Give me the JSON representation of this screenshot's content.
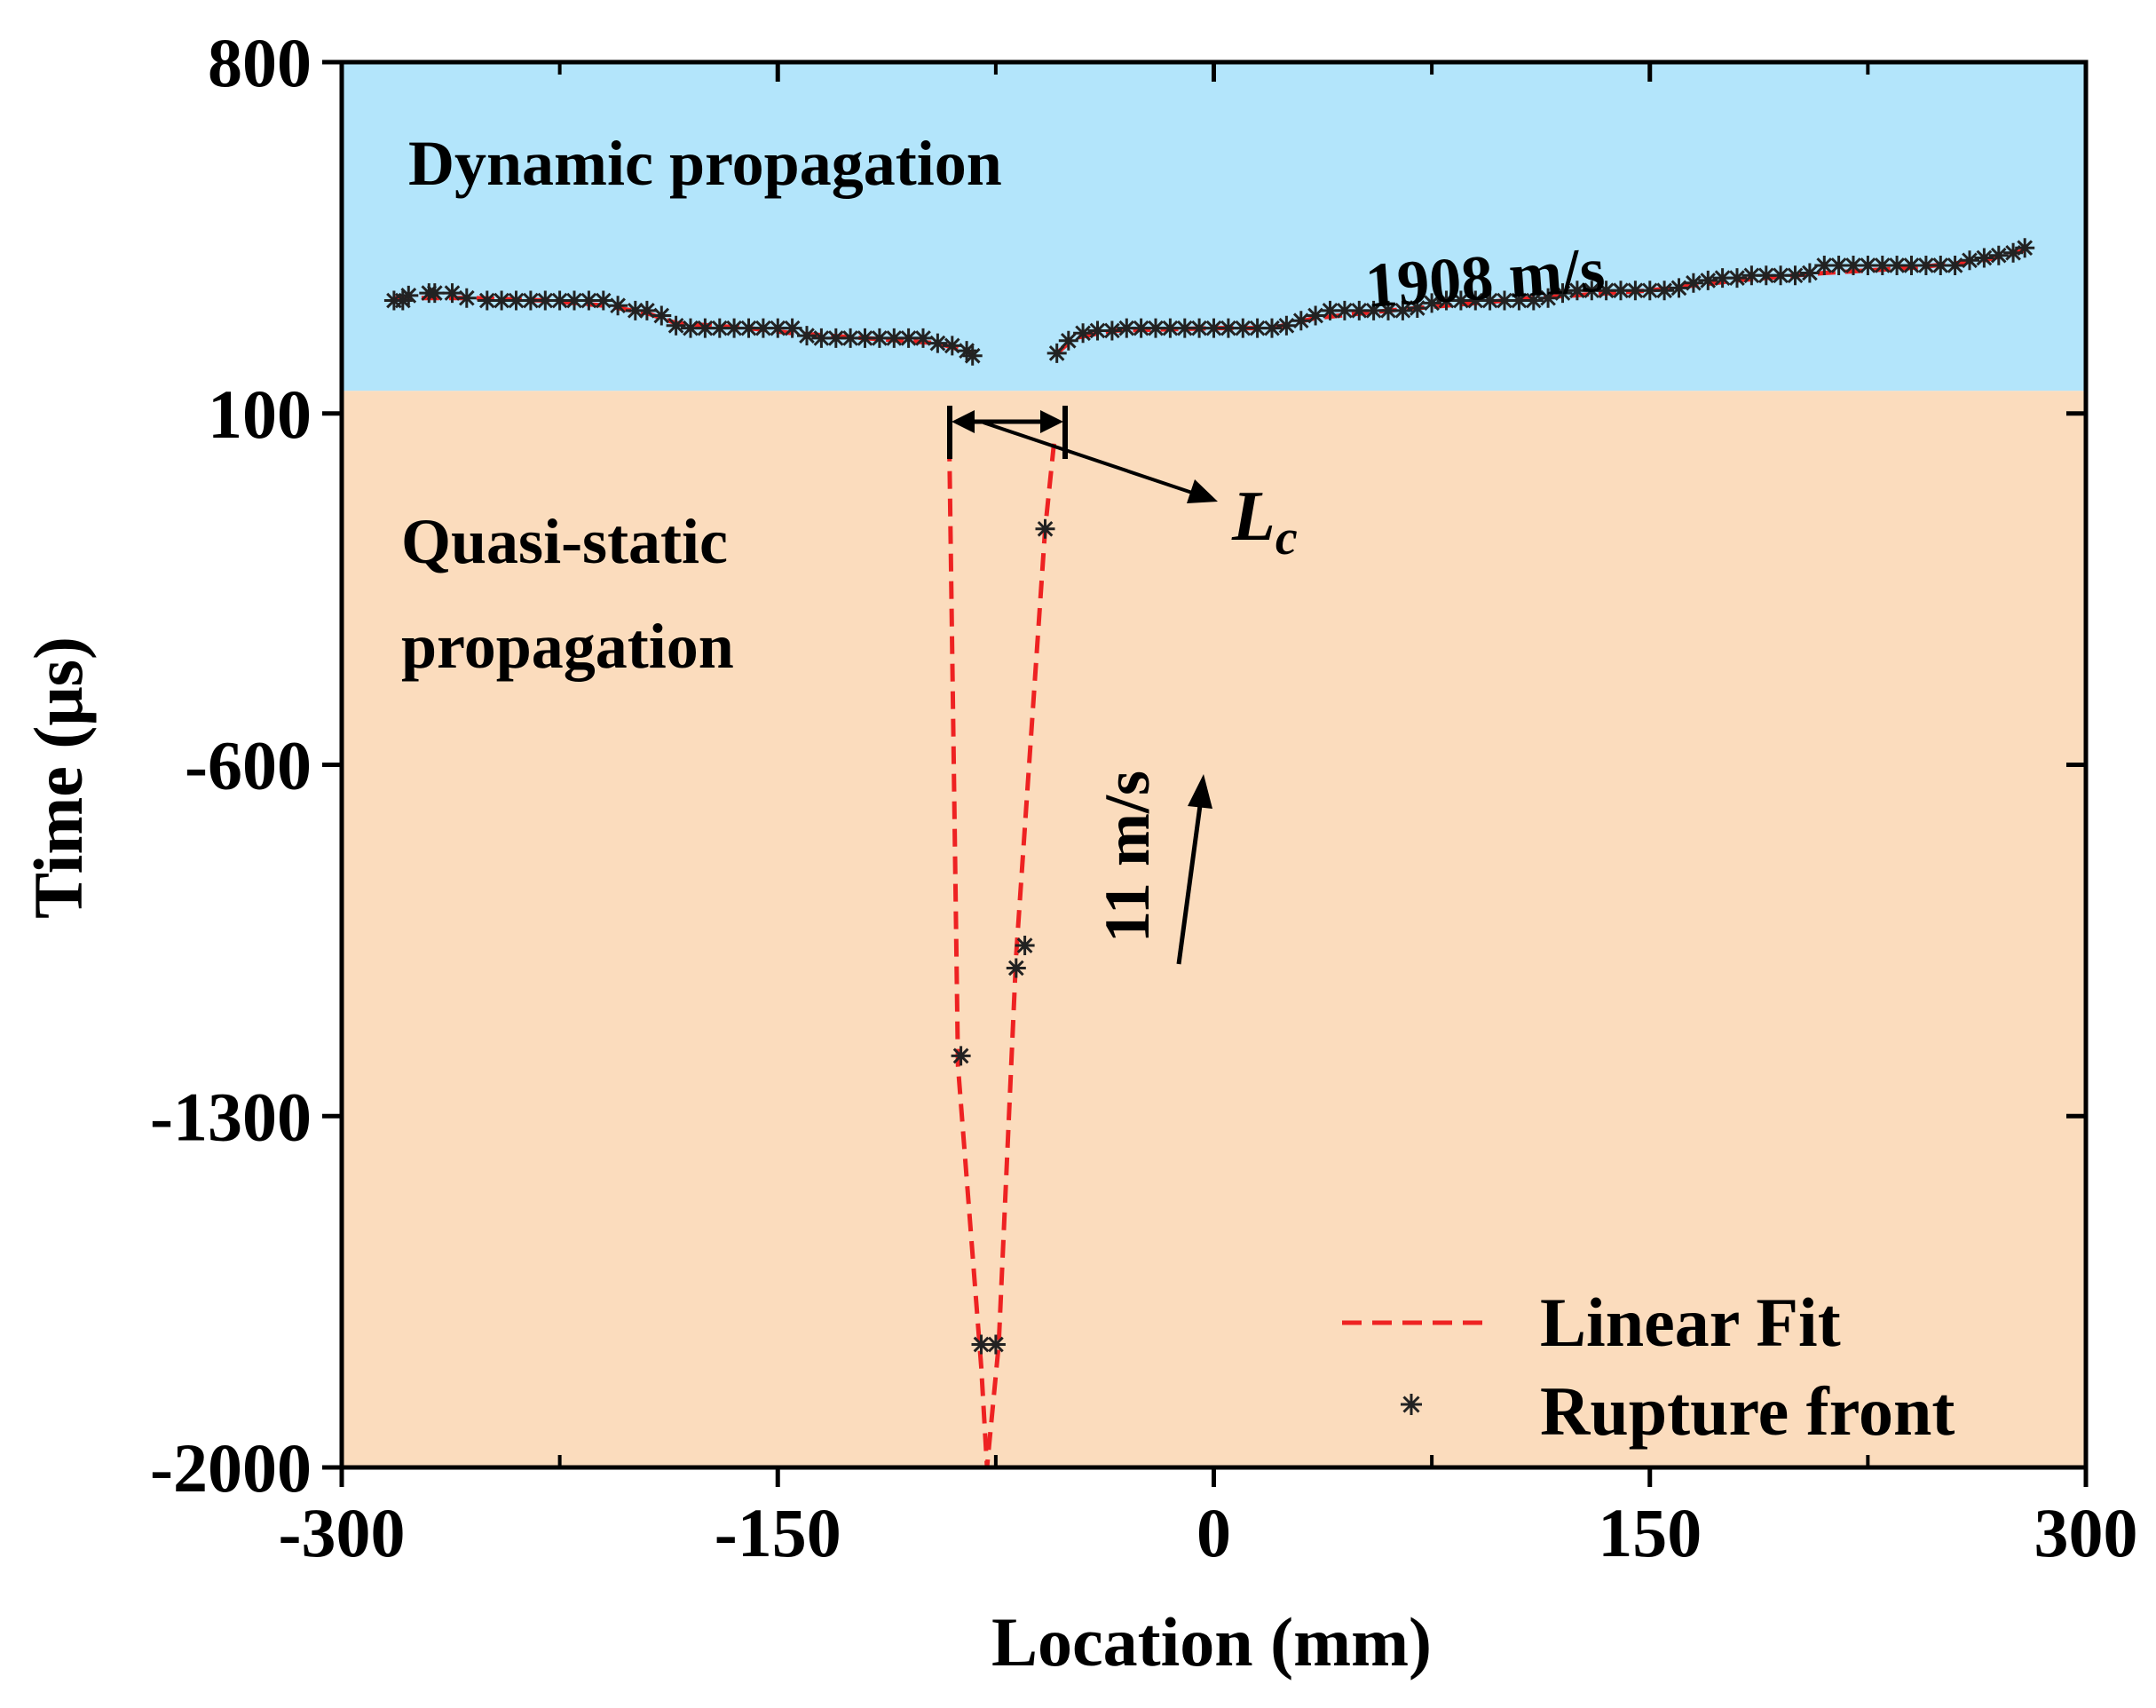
{
  "chart_data": {
    "type": "scatter",
    "xlabel": "Location (mm)",
    "ylabel": "Time (μs)",
    "xlim": [
      -300,
      300
    ],
    "ylim": [
      -2000,
      800
    ],
    "xticks": [
      -300,
      -150,
      0,
      150,
      300
    ],
    "yticks": [
      800,
      100,
      -600,
      -1300,
      -2000
    ],
    "xtick_labels": [
      "-300",
      "-150",
      "0",
      "150",
      "300"
    ],
    "ytick_labels": [
      "800",
      "100",
      "-600",
      "-1300",
      "-2000"
    ],
    "region_boundary_time": 145,
    "colors": {
      "dynamic_region": "#b3e5fb",
      "quasi_region": "#fbdcbd",
      "fit_line": "#ee2222",
      "marker": "#222222"
    },
    "regions": {
      "dynamic": {
        "label": "Dynamic propagation"
      },
      "quasi_static": {
        "label_line1": "Quasi-static",
        "label_line2": "propagation"
      }
    },
    "annotations": {
      "dynamic_speed": "1908 m/s",
      "quasi_speed": "11 m/s",
      "critical_length_symbol": "L",
      "critical_length_subscript": "c"
    },
    "legend": {
      "position": "bottom-right",
      "entries": [
        {
          "label": "Linear Fit",
          "style": "dashed-line"
        },
        {
          "label": "Rupture front",
          "style": "asterisk"
        }
      ]
    },
    "series": [
      {
        "name": "Rupture front",
        "kind": "scatter",
        "points": [
          [
            -282,
            325
          ],
          [
            -279,
            325
          ],
          [
            -277,
            335
          ],
          [
            -270,
            340
          ],
          [
            -268,
            340
          ],
          [
            -262,
            340
          ],
          [
            -257,
            330
          ],
          [
            -250,
            325
          ],
          [
            -245,
            325
          ],
          [
            -240,
            325
          ],
          [
            -235,
            325
          ],
          [
            -230,
            325
          ],
          [
            -225,
            325
          ],
          [
            -220,
            325
          ],
          [
            -215,
            325
          ],
          [
            -210,
            325
          ],
          [
            -205,
            315
          ],
          [
            -199,
            305
          ],
          [
            -195,
            305
          ],
          [
            -190,
            295
          ],
          [
            -185,
            275
          ],
          [
            -180,
            270
          ],
          [
            -175,
            270
          ],
          [
            -170,
            270
          ],
          [
            -165,
            270
          ],
          [
            -160,
            270
          ],
          [
            -155,
            270
          ],
          [
            -150,
            270
          ],
          [
            -145,
            270
          ],
          [
            -140,
            255
          ],
          [
            -135,
            250
          ],
          [
            -130,
            250
          ],
          [
            -125,
            250
          ],
          [
            -120,
            250
          ],
          [
            -115,
            250
          ],
          [
            -110,
            250
          ],
          [
            -105,
            250
          ],
          [
            -100,
            250
          ],
          [
            -95,
            240
          ],
          [
            -90,
            235
          ],
          [
            -85,
            225
          ],
          [
            -83,
            215
          ],
          [
            -54,
            220
          ],
          [
            -50,
            245
          ],
          [
            -45,
            260
          ],
          [
            -40,
            265
          ],
          [
            -35,
            265
          ],
          [
            -30,
            270
          ],
          [
            -25,
            270
          ],
          [
            -20,
            270
          ],
          [
            -15,
            270
          ],
          [
            -10,
            270
          ],
          [
            -5,
            270
          ],
          [
            0,
            270
          ],
          [
            5,
            270
          ],
          [
            10,
            270
          ],
          [
            15,
            270
          ],
          [
            20,
            270
          ],
          [
            25,
            275
          ],
          [
            30,
            285
          ],
          [
            35,
            295
          ],
          [
            40,
            305
          ],
          [
            45,
            305
          ],
          [
            50,
            305
          ],
          [
            55,
            305
          ],
          [
            60,
            305
          ],
          [
            65,
            305
          ],
          [
            70,
            310
          ],
          [
            75,
            320
          ],
          [
            80,
            325
          ],
          [
            85,
            325
          ],
          [
            90,
            325
          ],
          [
            95,
            325
          ],
          [
            100,
            325
          ],
          [
            105,
            325
          ],
          [
            110,
            325
          ],
          [
            115,
            330
          ],
          [
            120,
            340
          ],
          [
            125,
            345
          ],
          [
            130,
            345
          ],
          [
            135,
            345
          ],
          [
            140,
            345
          ],
          [
            145,
            345
          ],
          [
            150,
            345
          ],
          [
            155,
            345
          ],
          [
            160,
            350
          ],
          [
            165,
            360
          ],
          [
            170,
            365
          ],
          [
            175,
            370
          ],
          [
            180,
            370
          ],
          [
            185,
            375
          ],
          [
            190,
            375
          ],
          [
            195,
            375
          ],
          [
            200,
            375
          ],
          [
            205,
            380
          ],
          [
            210,
            395
          ],
          [
            215,
            395
          ],
          [
            220,
            395
          ],
          [
            225,
            395
          ],
          [
            230,
            395
          ],
          [
            235,
            395
          ],
          [
            240,
            395
          ],
          [
            245,
            395
          ],
          [
            250,
            395
          ],
          [
            255,
            395
          ],
          [
            260,
            405
          ],
          [
            265,
            410
          ],
          [
            270,
            415
          ],
          [
            275,
            420
          ],
          [
            279,
            430
          ],
          [
            -58,
            -130
          ],
          [
            -65,
            -960
          ],
          [
            -68,
            -1005
          ],
          [
            -87,
            -1180
          ],
          [
            -80,
            -1755
          ],
          [
            -75,
            -1755
          ]
        ]
      },
      {
        "name": "Linear Fit",
        "kind": "line",
        "segments": [
          [
            [
              -282,
              330
            ],
            [
              -255,
              330
            ],
            [
              -230,
              325
            ],
            [
              -210,
              315
            ],
            [
              -195,
              300
            ],
            [
              -185,
              280
            ],
            [
              -160,
              270
            ],
            [
              -145,
              260
            ],
            [
              -120,
              250
            ],
            [
              -95,
              240
            ],
            [
              -83,
              220
            ]
          ],
          [
            [
              -54,
              220
            ],
            [
              -48,
              250
            ],
            [
              -35,
              265
            ],
            [
              0,
              270
            ],
            [
              20,
              270
            ],
            [
              35,
              290
            ],
            [
              60,
              305
            ],
            [
              90,
              320
            ],
            [
              110,
              330
            ],
            [
              150,
              345
            ],
            [
              180,
              365
            ],
            [
              210,
              380
            ],
            [
              240,
              390
            ],
            [
              265,
              405
            ],
            [
              279,
              425
            ]
          ],
          [
            [
              -91,
              40
            ],
            [
              -88,
              -1200
            ],
            [
              -80,
              -1800
            ],
            [
              -78,
              -2000
            ]
          ],
          [
            [
              -55,
              40
            ],
            [
              -58,
              -130
            ],
            [
              -68,
              -980
            ],
            [
              -74,
              -1755
            ],
            [
              -78,
              -2000
            ]
          ]
        ]
      }
    ]
  }
}
